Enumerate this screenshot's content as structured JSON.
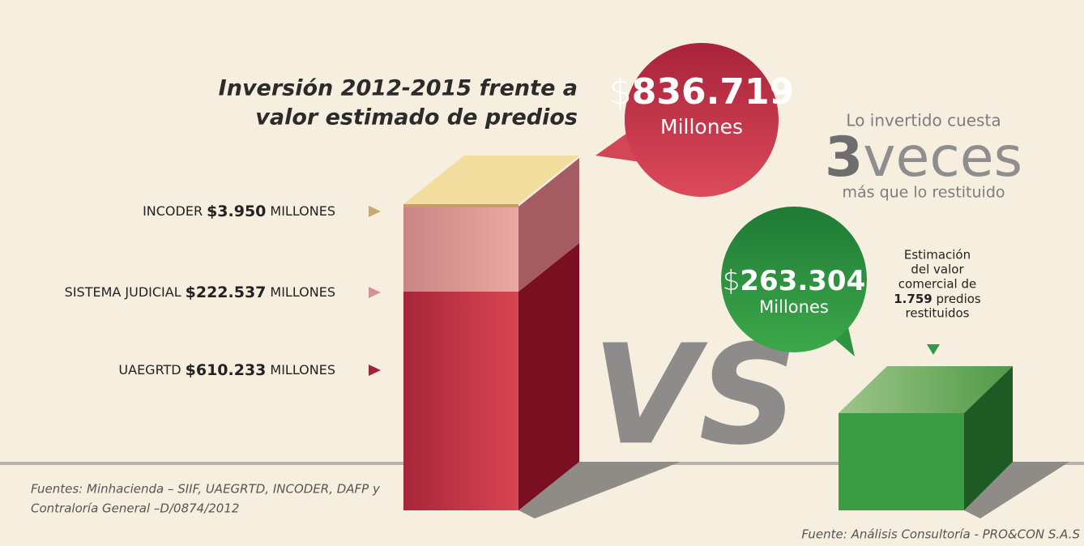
{
  "title_lines": [
    "Inversión 2012-2015 frente a",
    "valor estimado de predios"
  ],
  "investment_bubble": {
    "currency": "$",
    "amount": "836.719",
    "unit": "Millones"
  },
  "segments": [
    {
      "name": "INCODER",
      "amount": "$3.950",
      "unit": "MILLONES"
    },
    {
      "name": "SISTEMA JUDICIAL",
      "amount": "$222.537",
      "unit": "MILLONES"
    },
    {
      "name": "UAEGRTD",
      "amount": "$610.233",
      "unit": "MILLONES"
    }
  ],
  "vs": "VS",
  "comparison": {
    "top": "Lo invertido cuesta",
    "number": "3",
    "word": "veces",
    "bottom": "más que lo restituido"
  },
  "restitution_bubble": {
    "currency": "$",
    "amount": "263.304",
    "unit": "Millones"
  },
  "estimate_note": {
    "lines": [
      "Estimación",
      "del valor",
      "comercial de"
    ],
    "count": "1.759",
    "count_suffix": " predios",
    "last": "restituidos"
  },
  "sources_left": [
    "Fuentes: Minhacienda – SIIF, UAEGRTD, INCODER, DAFP y",
    "Contraloría General –D/0874/2012"
  ],
  "source_right": "Fuente: Análisis Consultoría - PRO&CON S.A.S"
}
